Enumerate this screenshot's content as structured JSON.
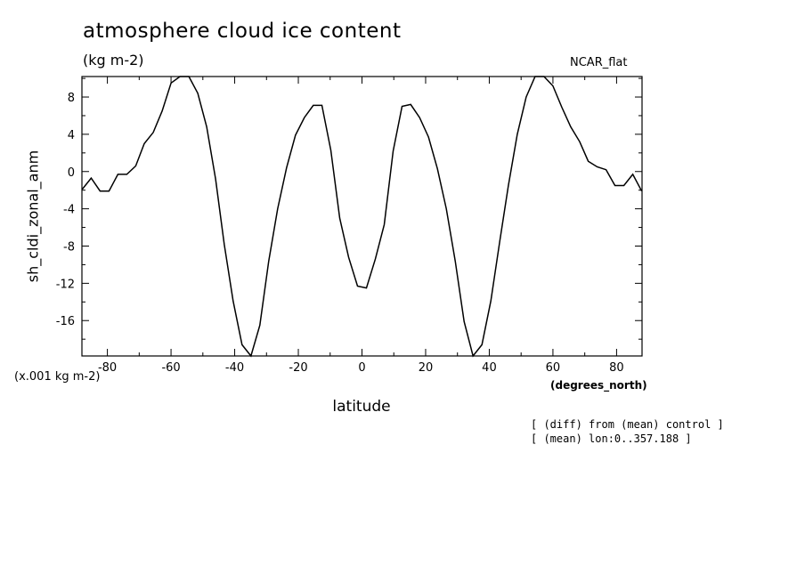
{
  "chart_data": {
    "type": "line",
    "title": "atmosphere cloud ice content",
    "units": "(kg m-2)",
    "variant": "NCAR_flat",
    "ylabel": "sh_cldi_zonal_anm",
    "xlabel": "latitude",
    "x_units": "(degrees_north)",
    "y_scale_note": "(x.001 kg m-2)",
    "notes": [
      "[ (diff) from (mean) control ]",
      "[ (mean) lon:0..357.188 ]"
    ],
    "xlim": [
      -88,
      88
    ],
    "ylim": [
      -19.8,
      10.2
    ],
    "x_ticks": [
      -80,
      -60,
      -40,
      -20,
      0,
      20,
      40,
      60,
      80
    ],
    "x_tick_labels": [
      "-80",
      "-60",
      "-40",
      "-20",
      "0",
      "20",
      "40",
      "60",
      "80"
    ],
    "y_ticks": [
      8,
      4,
      0,
      -4,
      -8,
      -12,
      -16
    ],
    "y_tick_labels": [
      "8",
      "4",
      "0",
      "-4",
      "-8",
      "-12",
      "-16"
    ],
    "grid": false,
    "series": [
      {
        "x": [
          -87.9,
          -85.1,
          -82.3,
          -79.5,
          -76.7,
          -73.9,
          -71.1,
          -68.4,
          -65.6,
          -62.8,
          -60.0,
          -57.2,
          -54.4,
          -51.6,
          -48.8,
          -46.0,
          -43.3,
          -40.5,
          -37.7,
          -34.9,
          -32.1,
          -29.3,
          -26.5,
          -23.7,
          -20.9,
          -18.1,
          -15.3,
          -12.6,
          -9.8,
          -7.0,
          -4.2,
          -1.4,
          1.4,
          4.2,
          7.0,
          9.8,
          12.6,
          15.3,
          18.1,
          20.9,
          23.7,
          26.5,
          29.3,
          32.1,
          34.9,
          37.7,
          40.5,
          43.3,
          46.0,
          48.8,
          51.6,
          54.4,
          57.2,
          60.0,
          62.8,
          65.6,
          68.4,
          71.1,
          73.9,
          76.7,
          79.5,
          82.3,
          85.1,
          87.9
        ],
        "values": [
          -1.9,
          -0.7,
          -2.1,
          -2.1,
          -0.3,
          -0.3,
          0.6,
          3.0,
          4.2,
          6.5,
          9.5,
          10.2,
          10.2,
          8.4,
          4.8,
          -0.8,
          -7.8,
          -13.9,
          -18.6,
          -19.8,
          -16.5,
          -9.6,
          -4.0,
          0.4,
          3.9,
          5.8,
          7.1,
          7.1,
          2.3,
          -5.0,
          -9.2,
          -12.3,
          -12.5,
          -9.4,
          -5.7,
          2.2,
          7.0,
          7.2,
          5.8,
          3.7,
          0.3,
          -4.0,
          -9.6,
          -16.1,
          -19.8,
          -18.6,
          -13.9,
          -7.5,
          -1.5,
          4.0,
          8.0,
          10.2,
          10.2,
          9.2,
          6.9,
          4.8,
          3.2,
          1.1,
          0.5,
          0.2,
          -1.5,
          -1.5,
          -0.3,
          -2.1
        ]
      }
    ]
  }
}
